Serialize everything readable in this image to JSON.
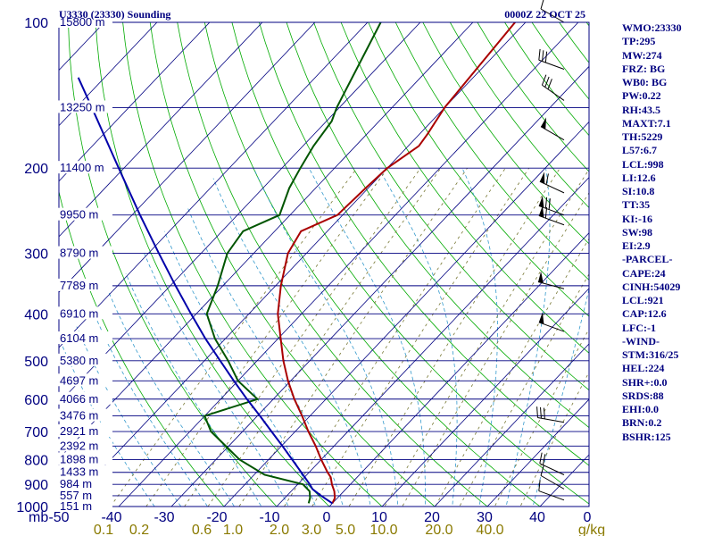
{
  "chart_data": {
    "type": "line",
    "title": "U3330 (23330) Sounding",
    "valid_time": "0000Z 22 OCT 25",
    "x_axis_label": "mb",
    "xlim": [
      -50,
      50
    ],
    "ylim": [
      1000,
      100
    ],
    "pressure_ticks": [
      100,
      200,
      300,
      400,
      500,
      600,
      700,
      800,
      900,
      1000
    ],
    "temperature_ticks": [
      "-50",
      "-40",
      "-30",
      "-20",
      "-10",
      "0",
      "10",
      "20",
      "30",
      "40",
      "0"
    ],
    "mixing_ratio_ticks": [
      "0.1",
      "0.2",
      "0.6",
      "1.0",
      "2.0",
      "3.0",
      "5.0",
      "10.0",
      "20.0",
      "40.0",
      "g/kg"
    ],
    "height_labels": [
      {
        "p": 100,
        "label": "15800 m"
      },
      {
        "p": 150,
        "label": "13250 m"
      },
      {
        "p": 200,
        "label": "11400 m"
      },
      {
        "p": 250,
        "label": "9950 m"
      },
      {
        "p": 300,
        "label": "8790 m"
      },
      {
        "p": 350,
        "label": "7789 m"
      },
      {
        "p": 400,
        "label": "6910 m"
      },
      {
        "p": 450,
        "label": "6104 m"
      },
      {
        "p": 500,
        "label": "5380 m"
      },
      {
        "p": 550,
        "label": "4697 m"
      },
      {
        "p": 600,
        "label": "4066 m"
      },
      {
        "p": 650,
        "label": "3476 m"
      },
      {
        "p": 700,
        "label": "2921 m"
      },
      {
        "p": 750,
        "label": "2392 m"
      },
      {
        "p": 800,
        "label": "1898 m"
      },
      {
        "p": 850,
        "label": "1433 m"
      },
      {
        "p": 900,
        "label": "984 m"
      },
      {
        "p": 950,
        "label": "557 m"
      },
      {
        "p": 1000,
        "label": "151 m"
      }
    ],
    "series": [
      {
        "name": "Temperature",
        "color": "#aa0000",
        "points": [
          {
            "p": 985,
            "t": 0.0
          },
          {
            "p": 960,
            "t": -0.5
          },
          {
            "p": 930,
            "t": -1.8
          },
          {
            "p": 900,
            "t": -3.5
          },
          {
            "p": 870,
            "t": -5.0
          },
          {
            "p": 850,
            "t": -6.5
          },
          {
            "p": 800,
            "t": -10.0
          },
          {
            "p": 750,
            "t": -13.5
          },
          {
            "p": 700,
            "t": -17.5
          },
          {
            "p": 650,
            "t": -21.5
          },
          {
            "p": 600,
            "t": -26.0
          },
          {
            "p": 550,
            "t": -30.5
          },
          {
            "p": 500,
            "t": -35.0
          },
          {
            "p": 450,
            "t": -39.5
          },
          {
            "p": 400,
            "t": -44.5
          },
          {
            "p": 350,
            "t": -49.0
          },
          {
            "p": 300,
            "t": -53.5
          },
          {
            "p": 270,
            "t": -55.0
          },
          {
            "p": 250,
            "t": -51.0
          },
          {
            "p": 220,
            "t": -50.5
          },
          {
            "p": 200,
            "t": -50.0
          },
          {
            "p": 180,
            "t": -48.0
          },
          {
            "p": 170,
            "t": -48.5
          },
          {
            "p": 150,
            "t": -50.0
          },
          {
            "p": 100,
            "t": -52.0
          }
        ]
      },
      {
        "name": "Dewpoint",
        "color": "#005500",
        "points": [
          {
            "p": 985,
            "t": -4.5
          },
          {
            "p": 960,
            "t": -5.2
          },
          {
            "p": 930,
            "t": -6.5
          },
          {
            "p": 900,
            "t": -9.0
          },
          {
            "p": 860,
            "t": -18.0
          },
          {
            "p": 800,
            "t": -25.5
          },
          {
            "p": 700,
            "t": -36.0
          },
          {
            "p": 650,
            "t": -40.0
          },
          {
            "p": 600,
            "t": -33.0
          },
          {
            "p": 550,
            "t": -40.0
          },
          {
            "p": 500,
            "t": -45.5
          },
          {
            "p": 450,
            "t": -52.0
          },
          {
            "p": 400,
            "t": -58.0
          },
          {
            "p": 350,
            "t": -61.0
          },
          {
            "p": 300,
            "t": -65.0
          },
          {
            "p": 270,
            "t": -66.0
          },
          {
            "p": 250,
            "t": -62.0
          },
          {
            "p": 220,
            "t": -65.0
          },
          {
            "p": 200,
            "t": -66.5
          },
          {
            "p": 180,
            "t": -68.0
          },
          {
            "p": 160,
            "t": -69.0
          },
          {
            "p": 150,
            "t": -70.5
          },
          {
            "p": 100,
            "t": -77.5
          }
        ]
      },
      {
        "name": "Parcel",
        "color": "#0000aa",
        "points": [
          {
            "p": 985,
            "t": 0.0
          },
          {
            "p": 950,
            "t": -3.5
          },
          {
            "p": 921,
            "t": -6.3
          },
          {
            "p": 900,
            "t": -7.7
          },
          {
            "p": 850,
            "t": -11.5
          },
          {
            "p": 800,
            "t": -15.5
          },
          {
            "p": 750,
            "t": -19.8
          },
          {
            "p": 700,
            "t": -24.5
          },
          {
            "p": 650,
            "t": -29.5
          },
          {
            "p": 600,
            "t": -35.0
          },
          {
            "p": 550,
            "t": -40.8
          },
          {
            "p": 500,
            "t": -47.0
          },
          {
            "p": 450,
            "t": -53.8
          },
          {
            "p": 400,
            "t": -61.0
          },
          {
            "p": 350,
            "t": -69.0
          },
          {
            "p": 300,
            "t": -78.0
          },
          {
            "p": 250,
            "t": -88.5
          },
          {
            "p": 200,
            "t": -101.0
          },
          {
            "p": 150,
            "t": -117.0
          },
          {
            "p": 130,
            "t": -125.0
          }
        ]
      }
    ],
    "wind_barbs": [
      {
        "p": 970,
        "dir": 290,
        "kt": 10
      },
      {
        "p": 920,
        "dir": 300,
        "kt": 10
      },
      {
        "p": 860,
        "dir": 295,
        "kt": 20
      },
      {
        "p": 670,
        "dir": 280,
        "kt": 30
      },
      {
        "p": 435,
        "dir": 290,
        "kt": 50
      },
      {
        "p": 355,
        "dir": 285,
        "kt": 50
      },
      {
        "p": 262,
        "dir": 290,
        "kt": 60
      },
      {
        "p": 250,
        "dir": 290,
        "kt": 70
      },
      {
        "p": 225,
        "dir": 295,
        "kt": 60
      },
      {
        "p": 175,
        "dir": 300,
        "kt": 50
      },
      {
        "p": 145,
        "dir": 305,
        "kt": 30
      },
      {
        "p": 125,
        "dir": 290,
        "kt": 30
      },
      {
        "p": 100,
        "dir": 300,
        "kt": 10
      }
    ]
  },
  "side_panel": [
    "WMO:23330",
    "TP:295",
    "MW:274",
    "FRZ: BG",
    "WB0: BG",
    "PW:0.22",
    "RH:43.5",
    "MAXT:7.1",
    "TH:5229",
    "L57:6.7",
    "LCL:998",
    "LI:12.6",
    "SI:10.8",
    "TT:35",
    "KI:-16",
    "SW:98",
    "EI:2.9",
    "-PARCEL-",
    "CAPE:24",
    "CINH:54029",
    "LCL:921",
    "CAP:12.6",
    "LFC:-1",
    "-WIND-",
    "STM:316/25",
    "HEL:224",
    "SHR+:0.0",
    "SRDS:88",
    "EHI:0.0",
    "BRN:0.2",
    "BSHR:125"
  ],
  "colors": {
    "frame": "#000080",
    "isobar": "#000080",
    "isotherm": "#000080",
    "dry_adiabat": "#00aa00",
    "moist_adiabat": "#3399cc",
    "mixing_ratio": "#777733",
    "temperature": "#aa0000",
    "dewpoint": "#005500",
    "parcel": "#0000aa",
    "tick_text": "#000080",
    "mixing_text": "#8a7a00"
  }
}
